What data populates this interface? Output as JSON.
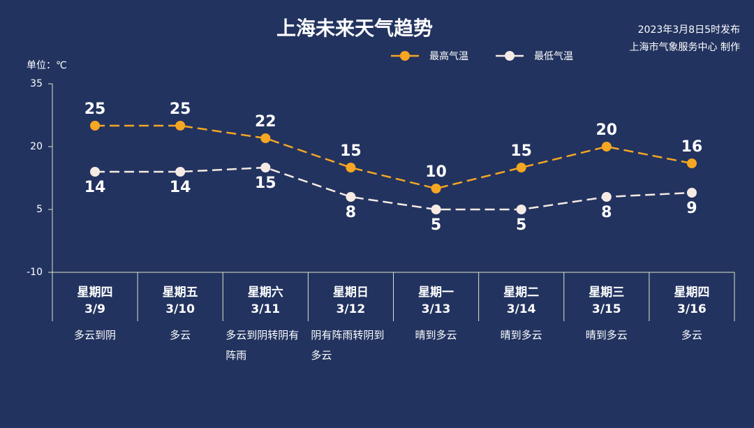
{
  "chart_data": {
    "type": "line",
    "title": "上海未来天气趋势",
    "publish_note": "2023年3月8日5时发布",
    "producer_note": "上海市气象服务中心 制作",
    "y_axis_label": "单位：℃",
    "categories": [
      "星期四",
      "星期五",
      "星期六",
      "星期日",
      "星期一",
      "星期二",
      "星期三",
      "星期四"
    ],
    "dates": [
      "3/9",
      "3/10",
      "3/11",
      "3/12",
      "3/13",
      "3/14",
      "3/15",
      "3/16"
    ],
    "weather": [
      "多云到阴",
      "多云",
      "多云到阴转阴有阵雨",
      "阴有阵雨转阴到多云",
      "晴到多云",
      "晴到多云",
      "晴到多云",
      "多云"
    ],
    "series": [
      {
        "name": "最高气温",
        "color": "#f5a623",
        "values": [
          25,
          25,
          22,
          15,
          10,
          15,
          20,
          16
        ]
      },
      {
        "name": "最低气温",
        "color": "#f6ebe4",
        "values": [
          14,
          14,
          15,
          8,
          5,
          5,
          8,
          9
        ]
      }
    ],
    "ylim": [
      -10,
      35
    ],
    "yticks": [
      -10,
      5,
      20,
      35
    ]
  }
}
